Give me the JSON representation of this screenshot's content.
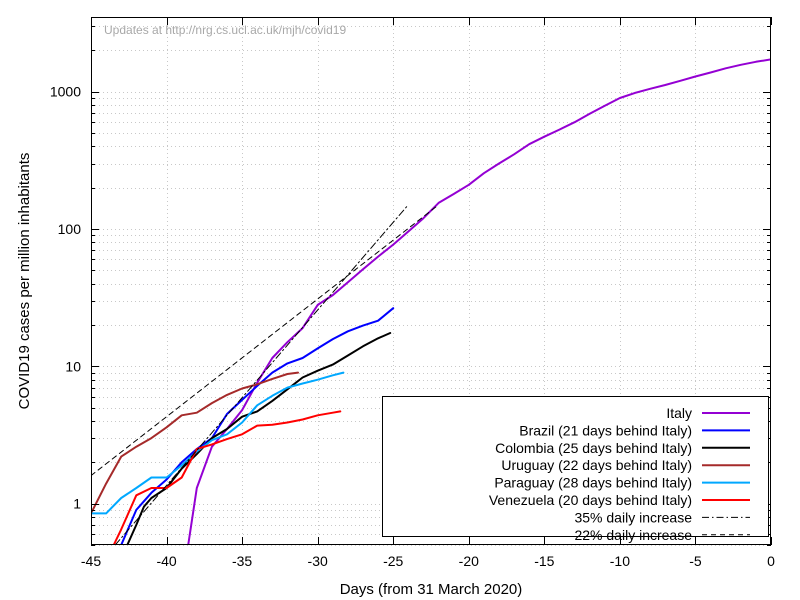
{
  "chart_data": {
    "type": "line",
    "watermark": "Updates at http://nrg.cs.ucl.ac.uk/mjh/covid19",
    "xlabel": "Days (from 31 March 2020)",
    "ylabel": "COVID19 cases per million inhabitants",
    "xlim": [
      -45,
      0
    ],
    "ylim": [
      0.5,
      3500
    ],
    "yscale": "log",
    "xticks": [
      -45,
      -40,
      -35,
      -30,
      -25,
      -20,
      -15,
      -10,
      -5,
      0
    ],
    "yticks": [
      1,
      10,
      100,
      1000
    ],
    "ytick_labels": [
      "1",
      "10",
      "100",
      "1000"
    ],
    "grid": true,
    "legend_position": "bottom-right",
    "series": [
      {
        "name": "Italy",
        "color": "#9400d3",
        "style": "solid",
        "x": [
          -38.7,
          -38,
          -37,
          -36,
          -35,
          -34,
          -33,
          -32,
          -31,
          -30,
          -29,
          -28,
          -27,
          -26,
          -25,
          -24,
          -23,
          -22,
          -21,
          -20,
          -19,
          -18,
          -17,
          -16,
          -15,
          -14,
          -13,
          -12,
          -11,
          -10,
          -9,
          -8,
          -7,
          -6,
          -5,
          -4,
          -3,
          -2,
          -1,
          0
        ],
        "y": [
          0.4,
          1.3,
          2.6,
          3.5,
          4.8,
          7.6,
          11.5,
          15,
          19,
          28,
          33,
          41,
          51,
          63,
          77,
          96,
          120,
          155,
          180,
          210,
          255,
          300,
          350,
          415,
          470,
          530,
          600,
          690,
          790,
          900,
          980,
          1050,
          1120,
          1200,
          1290,
          1380,
          1480,
          1570,
          1650,
          1720
        ]
      },
      {
        "name": "Brazil (21 days behind Italy)",
        "color": "#0000ff",
        "style": "solid",
        "x": [
          -43,
          -42,
          -41,
          -40,
          -39,
          -38,
          -37,
          -36,
          -35,
          -34,
          -33,
          -32,
          -31,
          -30,
          -29,
          -28,
          -27,
          -26,
          -25
        ],
        "y": [
          0.5,
          0.9,
          1.2,
          1.5,
          2.0,
          2.5,
          3.0,
          4.5,
          5.7,
          7.2,
          9.0,
          10.5,
          11.5,
          13.5,
          15.8,
          18,
          19.8,
          21.5,
          26.5
        ]
      },
      {
        "name": "Colombia (25 days behind Italy)",
        "color": "#000000",
        "style": "solid",
        "x": [
          -42.6,
          -42,
          -41.5,
          -41,
          -40,
          -39,
          -38,
          -37,
          -36,
          -35,
          -34,
          -33,
          -32,
          -31,
          -30,
          -29,
          -28,
          -27,
          -26,
          -25.2
        ],
        "y": [
          0.5,
          0.7,
          0.95,
          1.1,
          1.3,
          1.8,
          2.3,
          3.0,
          3.5,
          4.3,
          4.7,
          5.6,
          6.8,
          8.3,
          9.3,
          10.3,
          12,
          14,
          16,
          17.5
        ]
      },
      {
        "name": "Uruguay (22 days behind Italy)",
        "color": "#a52a2a",
        "style": "solid",
        "x": [
          -45,
          -44,
          -43,
          -42,
          -41,
          -40,
          -39,
          -38,
          -37,
          -36,
          -35,
          -34,
          -33,
          -32,
          -31.3
        ],
        "y": [
          0.85,
          1.4,
          2.2,
          2.6,
          3.0,
          3.6,
          4.4,
          4.6,
          5.4,
          6.2,
          6.9,
          7.4,
          8.1,
          8.8,
          9.0
        ]
      },
      {
        "name": "Paraguay (28 days behind Italy)",
        "color": "#00a8ff",
        "style": "solid",
        "x": [
          -45,
          -44,
          -43,
          -42,
          -41,
          -40,
          -39,
          -38,
          -37,
          -36,
          -35,
          -34,
          -33,
          -32,
          -31,
          -30,
          -29,
          -28.3
        ],
        "y": [
          0.85,
          0.85,
          1.1,
          1.3,
          1.55,
          1.55,
          1.9,
          2.4,
          2.9,
          3.2,
          3.9,
          5.2,
          6.1,
          7.0,
          7.5,
          8.0,
          8.6,
          9.0
        ]
      },
      {
        "name": "Venezuela (20 days behind Italy)",
        "color": "#ff0000",
        "style": "solid",
        "x": [
          -43.5,
          -43,
          -42,
          -41,
          -40,
          -39,
          -38,
          -37,
          -36,
          -35,
          -34,
          -33,
          -32,
          -31,
          -30,
          -29,
          -28.5
        ],
        "y": [
          0.5,
          0.65,
          1.15,
          1.3,
          1.3,
          1.55,
          2.5,
          2.7,
          2.95,
          3.2,
          3.7,
          3.75,
          3.9,
          4.1,
          4.4,
          4.6,
          4.7
        ]
      },
      {
        "name": "35% daily increase",
        "color": "#000000",
        "style": "dash-dot",
        "x": [
          -43.4,
          -24
        ],
        "y": [
          0.5,
          150
        ]
      },
      {
        "name": "22% daily increase",
        "color": "#000000",
        "style": "dashed",
        "x": [
          -45,
          -22
        ],
        "y": [
          1.6,
          150
        ]
      }
    ]
  }
}
